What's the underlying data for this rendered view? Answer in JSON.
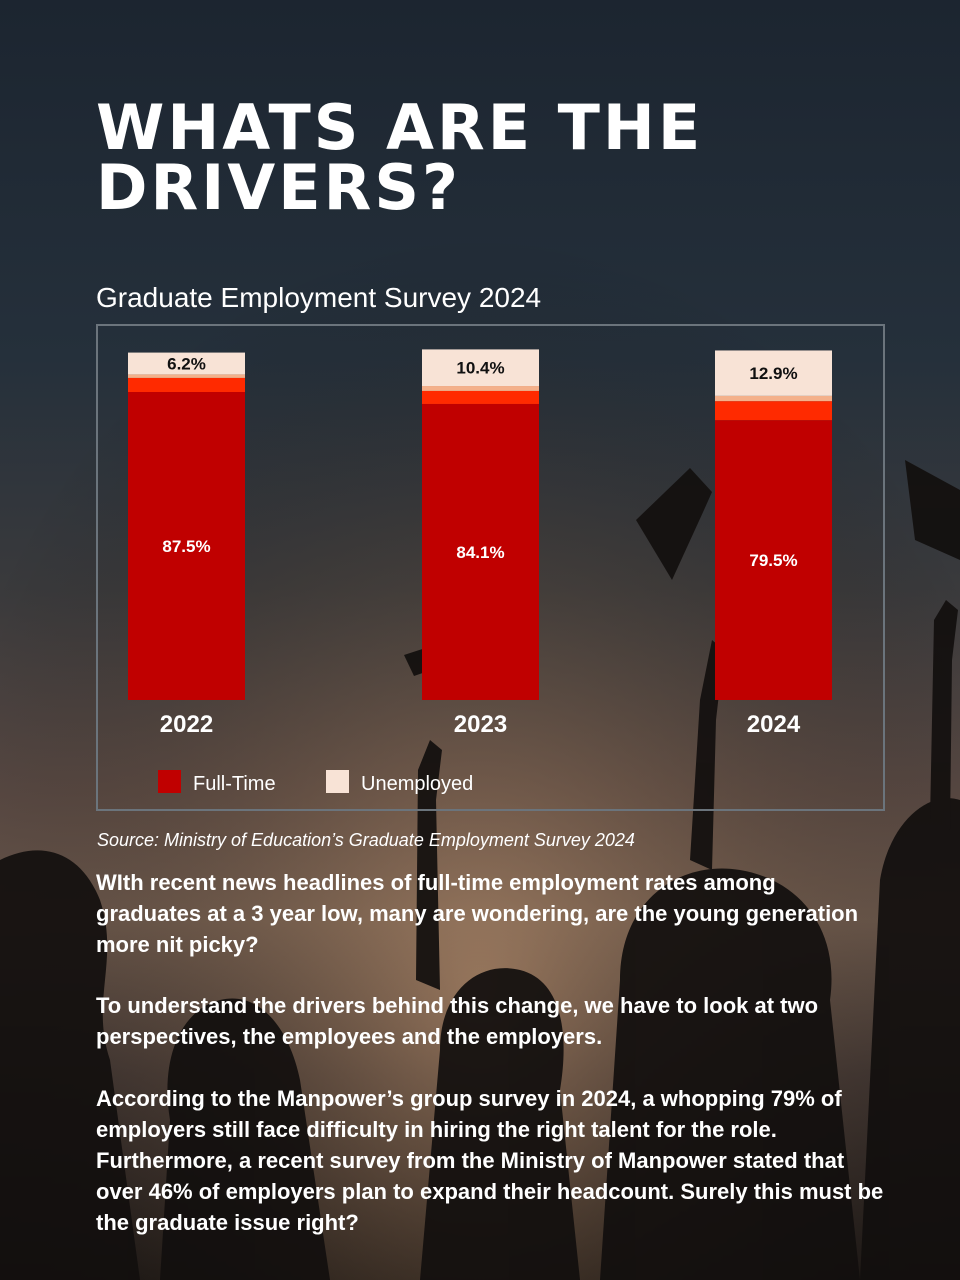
{
  "headline": "WHATS ARE THE DRIVERS?",
  "colors": {
    "full_time": "#c00000",
    "full_time_label": "#ffffff",
    "part_time": "#ff2a00",
    "freelance": "#f4b08a",
    "unemployed": "#f8e3d6",
    "frame": "#6b747c"
  },
  "chart_data": {
    "type": "bar",
    "stacked": true,
    "title": "Graduate Employment Survey 2024",
    "categories": [
      "2022",
      "2023",
      "2024"
    ],
    "series": [
      {
        "name": "Full-Time",
        "values": [
          87.5,
          84.1,
          79.5
        ],
        "labels": [
          "87.5%",
          "84.1%",
          "79.5%"
        ]
      },
      {
        "values": [
          4.0,
          3.7,
          5.4
        ]
      },
      {
        "values": [
          1.0,
          1.4,
          1.5
        ]
      },
      {
        "name": "Unemployed",
        "values": [
          6.2,
          10.4,
          12.9
        ],
        "labels": [
          "6.2%",
          "10.4%",
          "12.9%"
        ]
      }
    ],
    "ylim": [
      0,
      100
    ],
    "grid": false,
    "legend": {
      "position": "bottom-left",
      "items": [
        "Full-Time",
        "Unemployed"
      ]
    }
  },
  "source": "Source: Ministry of Education’s Graduate Employment Survey 2024",
  "paragraphs": [
    "WIth recent news headlines of full-time employment rates among graduates at a 3 year low, many are wondering, are the young generation more nit picky?",
    "To understand the drivers behind this change, we have to look at two perspectives, the employees and the employers.",
    "According to the Manpower’s group survey in 2024, a whopping 79% of employers still face difficulty in hiring the right talent for the role. Furthermore, a recent survey from the Ministry of Manpower stated that over 46% of employers plan to expand their headcount. Surely this must be the graduate issue right?"
  ]
}
